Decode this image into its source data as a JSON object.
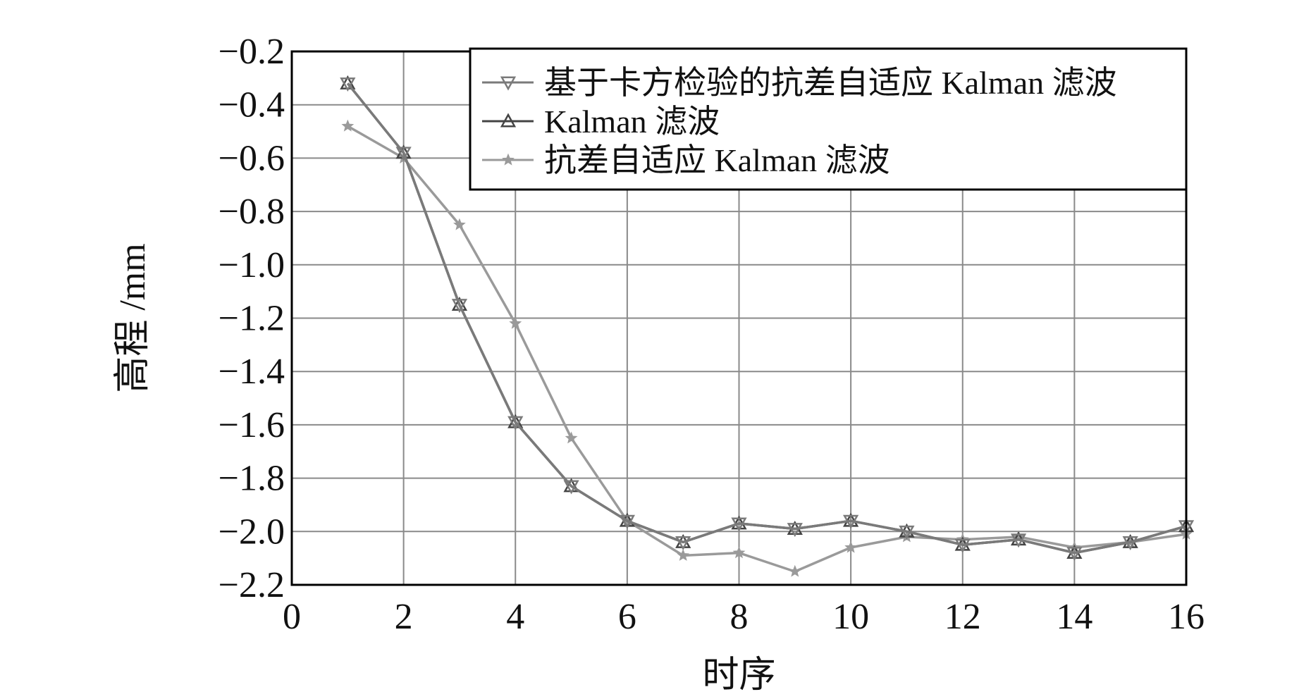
{
  "chart_data": {
    "type": "line",
    "xlabel": "时序",
    "ylabel": "高程 /mm",
    "xlim": [
      0,
      16
    ],
    "ylim": [
      -2.2,
      -0.2
    ],
    "xticks": [
      0,
      2,
      4,
      6,
      8,
      10,
      12,
      14,
      16
    ],
    "xtick_labels": [
      "0",
      "2",
      "4",
      "6",
      "8",
      "10",
      "12",
      "14",
      "16"
    ],
    "yticks": [
      -0.2,
      -0.4,
      -0.6,
      -0.8,
      -1.0,
      -1.2,
      -1.4,
      -1.6,
      -1.8,
      -2.0,
      -2.2
    ],
    "ytick_labels": [
      "−0.2",
      "−0.4",
      "−0.6",
      "−0.8",
      "−1.0",
      "−1.2",
      "−1.4",
      "−1.6",
      "−1.8",
      "−2.0",
      "−2.2"
    ],
    "grid": true,
    "legend_position": "top-right",
    "x": [
      1,
      2,
      3,
      4,
      5,
      6,
      7,
      8,
      9,
      10,
      11,
      12,
      13,
      14,
      15,
      16
    ],
    "series": [
      {
        "name": "基于卡方检验的抗差自适应 Kalman 滤波",
        "marker": "triangle-down",
        "color": "#7a7a7a",
        "values": [
          -0.32,
          -0.58,
          -1.15,
          -1.59,
          -1.83,
          -1.96,
          -2.04,
          -1.97,
          -1.99,
          -1.96,
          -2.0,
          -2.05,
          -2.03,
          -2.08,
          -2.04,
          -1.98
        ]
      },
      {
        "name": "Kalman 滤波",
        "marker": "triangle-up",
        "color": "#444444",
        "values": [
          -0.32,
          -0.58,
          -1.15,
          -1.59,
          -1.83,
          -1.96,
          -2.04,
          -1.97,
          -1.99,
          -1.96,
          -2.0,
          -2.05,
          -2.03,
          -2.08,
          -2.04,
          -1.98
        ]
      },
      {
        "name": "抗差自适应 Kalman 滤波",
        "marker": "star",
        "color": "#9a9a9a",
        "values": [
          -0.48,
          -0.6,
          -0.85,
          -1.22,
          -1.65,
          -1.96,
          -2.09,
          -2.08,
          -2.15,
          -2.06,
          -2.02,
          -2.03,
          -2.02,
          -2.06,
          -2.04,
          -2.01
        ]
      }
    ]
  }
}
